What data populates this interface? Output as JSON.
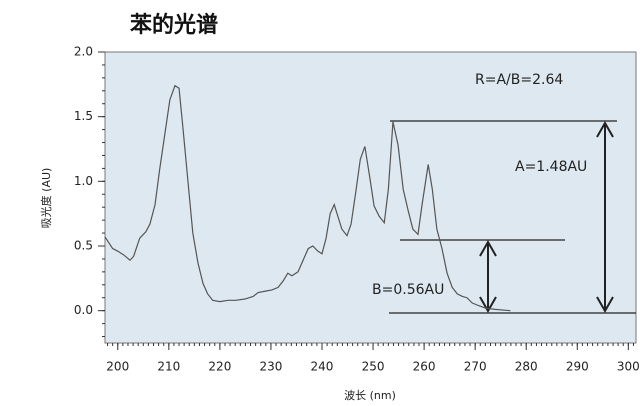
{
  "chart_data": {
    "type": "line",
    "title": "苯的光谱",
    "x_label": "波长 (nm)",
    "y_label": "吸光度 (AU)",
    "annotations": [
      "R=A/B=2.64",
      "A=1.48AU",
      "B=0.56AU"
    ],
    "xlim": [
      197.5,
      301.5
    ],
    "ylim": [
      -0.25,
      2.0
    ],
    "xticks": [
      200,
      210,
      220,
      230,
      240,
      250,
      260,
      270,
      280,
      290,
      300
    ],
    "yticks": [
      {
        "value": 0,
        "label": "0.0"
      },
      0.5,
      {
        "value": 1,
        "label": "1.0"
      },
      1.5,
      {
        "value": 2,
        "label": "2.0"
      }
    ],
    "series": [
      {
        "color": "#555555",
        "x": [
          197.5,
          199,
          200,
          201.2,
          202.4,
          203.1,
          204.3,
          205.5,
          206.3,
          207.3,
          208.2,
          209.2,
          210.2,
          211.2,
          212,
          212.7,
          213.7,
          214.7,
          215.7,
          216.7,
          217.6,
          218.6,
          220,
          221.6,
          223.1,
          224.9,
          226.5,
          227.5,
          228.8,
          230.2,
          231.4,
          232.4,
          233.3,
          234.1,
          235.3,
          236.3,
          237.3,
          238.2,
          239.2,
          240,
          240.8,
          241.6,
          242.4,
          243.1,
          243.9,
          244.9,
          245.7,
          246.7,
          247.5,
          248.4,
          249.4,
          250.2,
          251.2,
          252.2,
          253,
          253.9,
          254.9,
          255.9,
          256.9,
          257.8,
          258.8,
          259.6,
          260.8,
          261.6,
          262.5,
          263.5,
          264.5,
          265.5,
          266.5,
          267.5,
          268.4,
          269.4,
          270.6,
          272,
          273.9,
          276.9
        ],
        "values": [
          0.57,
          0.48,
          0.46,
          0.43,
          0.39,
          0.42,
          0.56,
          0.61,
          0.67,
          0.82,
          1.09,
          1.36,
          1.63,
          1.74,
          1.72,
          1.44,
          1.02,
          0.6,
          0.37,
          0.21,
          0.13,
          0.08,
          0.07,
          0.08,
          0.08,
          0.09,
          0.11,
          0.14,
          0.15,
          0.16,
          0.18,
          0.23,
          0.29,
          0.27,
          0.3,
          0.39,
          0.48,
          0.5,
          0.46,
          0.44,
          0.56,
          0.75,
          0.82,
          0.73,
          0.63,
          0.58,
          0.67,
          0.94,
          1.17,
          1.27,
          1.02,
          0.81,
          0.73,
          0.68,
          0.94,
          1.46,
          1.28,
          0.94,
          0.77,
          0.63,
          0.59,
          0.82,
          1.13,
          0.94,
          0.63,
          0.48,
          0.29,
          0.18,
          0.13,
          0.11,
          0.1,
          0.06,
          0.04,
          0.02,
          0.01,
          0
        ]
      }
    ]
  }
}
